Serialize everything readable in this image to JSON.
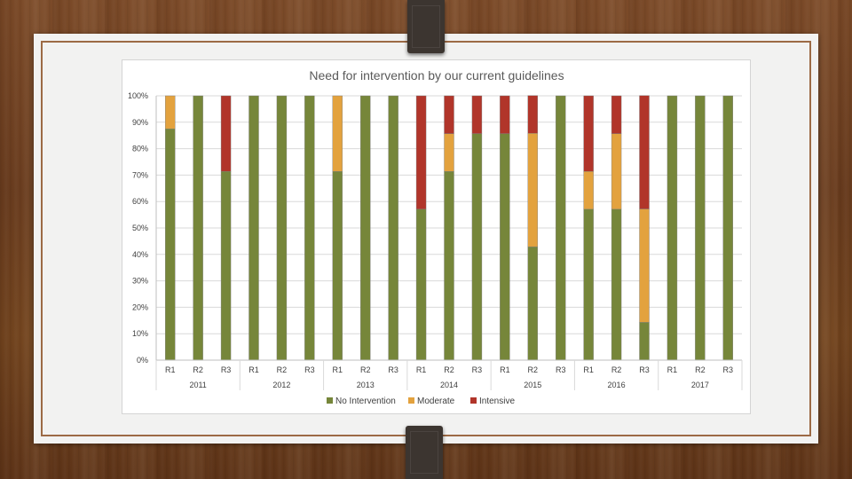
{
  "chart_data": {
    "type": "bar",
    "stacked": "percent",
    "title": "Need for intervention by our current guidelines",
    "xlabel": "",
    "ylabel": "",
    "ylim": [
      0,
      100
    ],
    "y_ticks": [
      "0%",
      "10%",
      "20%",
      "30%",
      "40%",
      "50%",
      "60%",
      "70%",
      "80%",
      "90%",
      "100%"
    ],
    "grid": true,
    "legend_position": "bottom",
    "groups": [
      "2011",
      "2012",
      "2013",
      "2014",
      "2015",
      "2016",
      "2017"
    ],
    "categories": [
      "R1",
      "R2",
      "R3",
      "R1",
      "R2",
      "R3",
      "R1",
      "R2",
      "R3",
      "R1",
      "R2",
      "R3",
      "R1",
      "R2",
      "R3",
      "R1",
      "R2",
      "R3",
      "R1",
      "R2",
      "R3"
    ],
    "series": [
      {
        "name": "No Intervention",
        "color": "#76863a",
        "values": [
          87.5,
          100,
          71.4,
          100,
          100,
          100,
          71.4,
          100,
          100,
          57.1,
          71.4,
          85.7,
          85.7,
          42.9,
          100,
          57.1,
          57.1,
          14.3,
          100,
          100,
          100
        ]
      },
      {
        "name": "Moderate",
        "color": "#e3a23e",
        "values": [
          12.5,
          0,
          0,
          0,
          0,
          0,
          28.6,
          0,
          0,
          0,
          14.3,
          0,
          0,
          42.9,
          0,
          14.3,
          28.6,
          42.9,
          0,
          0,
          0
        ]
      },
      {
        "name": "Intensive",
        "color": "#b1352a",
        "values": [
          0,
          0,
          28.6,
          0,
          0,
          0,
          0,
          0,
          0,
          42.9,
          14.3,
          14.3,
          14.3,
          14.3,
          0,
          28.6,
          14.3,
          42.9,
          0,
          0,
          0
        ]
      }
    ]
  }
}
